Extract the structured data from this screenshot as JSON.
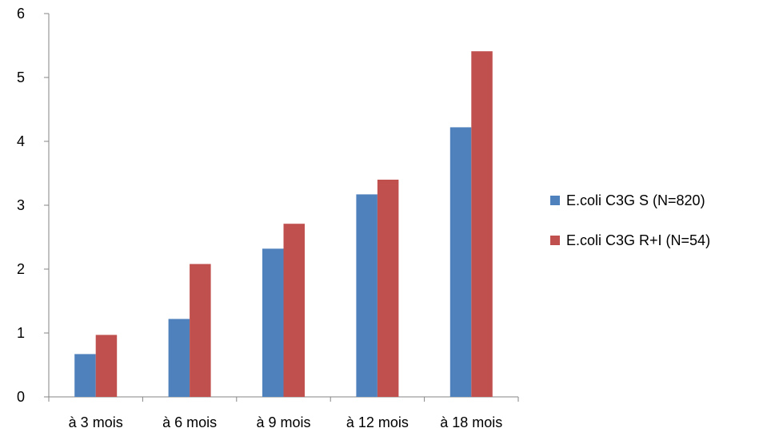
{
  "chart_data": {
    "type": "bar",
    "title": "",
    "xlabel": "",
    "ylabel": "",
    "categories": [
      "à 3 mois",
      "à 6 mois",
      "à 9 mois",
      "à 12 mois",
      "à 18 mois"
    ],
    "series": [
      {
        "name": "E.coli C3G S (N=820)",
        "color": "#4f81bd",
        "values": [
          0.67,
          1.22,
          2.32,
          3.17,
          4.22
        ]
      },
      {
        "name": "E.coli C3G R+I (N=54)",
        "color": "#c0504d",
        "values": [
          0.97,
          2.08,
          2.71,
          3.4,
          5.41
        ]
      }
    ],
    "ylim": [
      0,
      6
    ],
    "yticks": [
      "0",
      "1",
      "2",
      "3",
      "4",
      "5",
      "6"
    ],
    "grid": false,
    "legend_position": "right"
  }
}
